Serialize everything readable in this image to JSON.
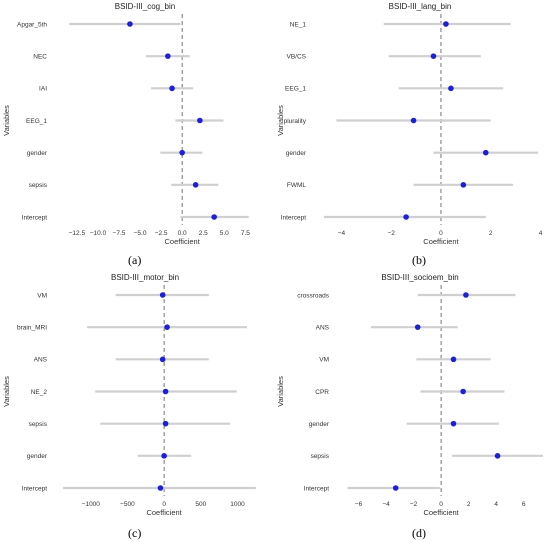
{
  "colors": {
    "point": "#1f1fd6",
    "ci": "#cfcfcf",
    "zero": "#666666"
  },
  "chart_data": [
    {
      "type": "scatter",
      "panel_label": "(a)",
      "title": "BSID-III_cog_bin",
      "xlabel": "Coefficient",
      "ylabel": "Variables",
      "xlim": [
        -14.5,
        9
      ],
      "xticks": [
        "−12.5",
        "−10.0",
        "−7.5",
        "−5.0",
        "−2.5",
        "0.0",
        "2.5",
        "5.0",
        "7.5"
      ],
      "xtick_values": [
        -12.5,
        -10,
        -7.5,
        -5,
        -2.5,
        0,
        2.5,
        5,
        7.5
      ],
      "variables": [
        "Apgar_5th",
        "NEC",
        "IAI",
        "EEG_1",
        "gender",
        "sepsis",
        "Intercept"
      ],
      "coef": [
        -6.2,
        -1.7,
        -1.2,
        2.1,
        0.0,
        1.6,
        3.8
      ],
      "ci_low": [
        -13.4,
        -4.3,
        -3.7,
        -0.8,
        -2.6,
        -1.3,
        -0.2
      ],
      "ci_high": [
        -0.2,
        0.9,
        1.3,
        4.9,
        2.4,
        4.3,
        7.9
      ]
    },
    {
      "type": "scatter",
      "panel_label": "(b)",
      "title": "BSID-III_lang_bin",
      "xlabel": "Coefficient",
      "ylabel": "Variables",
      "xlim": [
        -4.9,
        4.1
      ],
      "xticks": [
        "−4",
        "−2",
        "0",
        "2",
        "4"
      ],
      "xtick_values": [
        -4,
        -2,
        0,
        2,
        4
      ],
      "variables": [
        "NE_1",
        "VB/CS",
        "EEG_1",
        "plurality",
        "gender",
        "FWML",
        "Intercept"
      ],
      "coef": [
        0.2,
        -0.3,
        0.4,
        -1.1,
        1.8,
        0.9,
        -1.4
      ],
      "ci_low": [
        -2.3,
        -2.1,
        -1.7,
        -4.2,
        -0.3,
        -1.1,
        -4.7
      ],
      "ci_high": [
        2.8,
        1.6,
        2.5,
        2.0,
        3.9,
        2.9,
        1.8
      ]
    },
    {
      "type": "scatter",
      "panel_label": "(c)",
      "title": "BSID-III_motor_bin",
      "xlabel": "Coefficient",
      "ylabel": "Variables",
      "xlim": [
        -1420,
        1280
      ],
      "xticks": [
        "−1000",
        "−500",
        "0",
        "500",
        "1000"
      ],
      "xtick_values": [
        -1000,
        -500,
        0,
        500,
        1000
      ],
      "variables": [
        "VM",
        "brain_MRI",
        "ANS",
        "NE_2",
        "sepsis",
        "gender",
        "Intercept"
      ],
      "coef": [
        -20,
        40,
        -20,
        20,
        20,
        0,
        -50
      ],
      "ci_low": [
        -660,
        -1050,
        -660,
        -940,
        -870,
        -360,
        -1380
      ],
      "ci_high": [
        610,
        1130,
        610,
        990,
        900,
        370,
        1250
      ]
    },
    {
      "type": "scatter",
      "panel_label": "(d)",
      "title": "BSID-III_socioem_bin",
      "xlabel": "Coefficient",
      "ylabel": "Variables",
      "xlim": [
        -7.2,
        7.4
      ],
      "xticks": [
        "−6",
        "−4",
        "−2",
        "0",
        "2",
        "4",
        "6"
      ],
      "xtick_values": [
        -6,
        -4,
        -2,
        0,
        2,
        4,
        6
      ],
      "variables": [
        "crossroads",
        "ANS",
        "VM",
        "CPR",
        "gender",
        "sepsis",
        "Intercept"
      ],
      "coef": [
        1.8,
        -1.7,
        0.9,
        1.6,
        0.9,
        4.1,
        -3.3
      ],
      "ci_low": [
        -1.7,
        -5.1,
        -1.8,
        -1.5,
        -2.5,
        0.8,
        -6.8
      ],
      "ci_high": [
        5.4,
        1.2,
        3.6,
        4.6,
        4.2,
        7.4,
        -0.1
      ]
    }
  ]
}
